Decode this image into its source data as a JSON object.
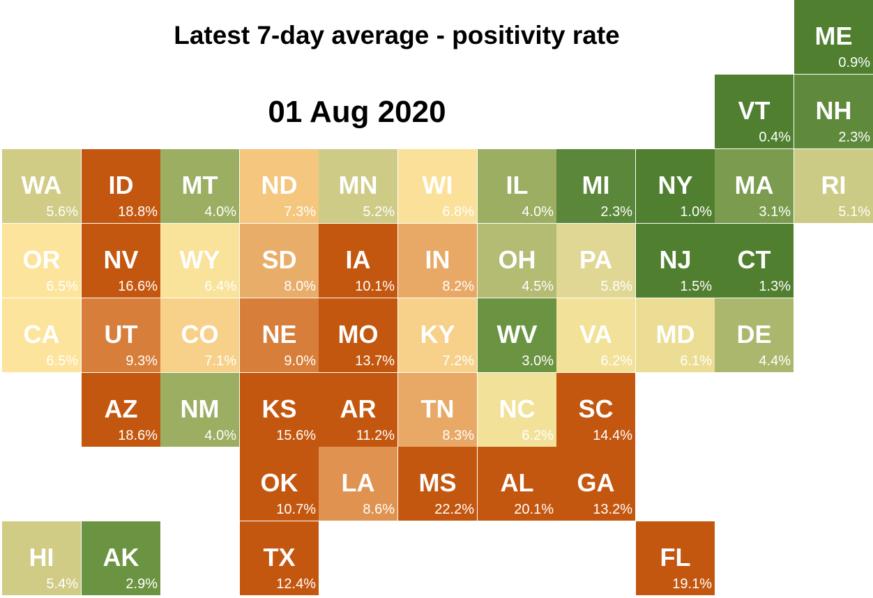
{
  "title": "Latest 7-day average - positivity rate",
  "date": "01 Aug 2020",
  "color_scale": {
    "lowest": "#4f7f2f",
    "low": "#8ea75a",
    "mid_low": "#cfcd8a",
    "mid": "#fbe29a",
    "mid_high": "#e89a52",
    "high": "#c4570f"
  },
  "states": [
    {
      "abbr": "ME",
      "value": "0.9%",
      "col": 10,
      "row": 0,
      "color": "#4f7f2f"
    },
    {
      "abbr": "VT",
      "value": "0.4%",
      "col": 9,
      "row": 1,
      "color": "#4f7f2f"
    },
    {
      "abbr": "NH",
      "value": "2.3%",
      "col": 10,
      "row": 1,
      "color": "#5f8a3c"
    },
    {
      "abbr": "WA",
      "value": "5.6%",
      "col": 0,
      "row": 2,
      "color": "#d0cb85"
    },
    {
      "abbr": "ID",
      "value": "18.8%",
      "col": 1,
      "row": 2,
      "color": "#c4570f"
    },
    {
      "abbr": "MT",
      "value": "4.0%",
      "col": 2,
      "row": 2,
      "color": "#9bae62"
    },
    {
      "abbr": "ND",
      "value": "7.3%",
      "col": 3,
      "row": 2,
      "color": "#f4c67e"
    },
    {
      "abbr": "MN",
      "value": "5.2%",
      "col": 4,
      "row": 2,
      "color": "#cdcb86"
    },
    {
      "abbr": "WI",
      "value": "6.8%",
      "col": 5,
      "row": 2,
      "color": "#fbe09a"
    },
    {
      "abbr": "IL",
      "value": "4.0%",
      "col": 6,
      "row": 2,
      "color": "#9bae62"
    },
    {
      "abbr": "MI",
      "value": "2.3%",
      "col": 7,
      "row": 2,
      "color": "#5a873a"
    },
    {
      "abbr": "NY",
      "value": "1.0%",
      "col": 8,
      "row": 2,
      "color": "#4f7f2f"
    },
    {
      "abbr": "MA",
      "value": "3.1%",
      "col": 9,
      "row": 2,
      "color": "#7b9c4e"
    },
    {
      "abbr": "RI",
      "value": "5.1%",
      "col": 10,
      "row": 2,
      "color": "#cccb85"
    },
    {
      "abbr": "OR",
      "value": "6.5%",
      "col": 0,
      "row": 3,
      "color": "#fde49c"
    },
    {
      "abbr": "NV",
      "value": "16.6%",
      "col": 1,
      "row": 3,
      "color": "#c4570f"
    },
    {
      "abbr": "WY",
      "value": "6.4%",
      "col": 2,
      "row": 3,
      "color": "#f9e29a"
    },
    {
      "abbr": "SD",
      "value": "8.0%",
      "col": 3,
      "row": 3,
      "color": "#e9ad6a"
    },
    {
      "abbr": "IA",
      "value": "10.1%",
      "col": 4,
      "row": 3,
      "color": "#c4570f"
    },
    {
      "abbr": "IN",
      "value": "8.2%",
      "col": 5,
      "row": 3,
      "color": "#e8a866"
    },
    {
      "abbr": "OH",
      "value": "4.5%",
      "col": 6,
      "row": 3,
      "color": "#b4bb72"
    },
    {
      "abbr": "PA",
      "value": "5.8%",
      "col": 7,
      "row": 3,
      "color": "#e0d794"
    },
    {
      "abbr": "NJ",
      "value": "1.5%",
      "col": 8,
      "row": 3,
      "color": "#4f7f2f"
    },
    {
      "abbr": "CT",
      "value": "1.3%",
      "col": 9,
      "row": 3,
      "color": "#4f7f2f"
    },
    {
      "abbr": "CA",
      "value": "6.5%",
      "col": 0,
      "row": 4,
      "color": "#fde49c"
    },
    {
      "abbr": "UT",
      "value": "9.3%",
      "col": 1,
      "row": 4,
      "color": "#d77e3a"
    },
    {
      "abbr": "CO",
      "value": "7.1%",
      "col": 2,
      "row": 4,
      "color": "#f7d18a"
    },
    {
      "abbr": "NE",
      "value": "9.0%",
      "col": 3,
      "row": 4,
      "color": "#d77e3a"
    },
    {
      "abbr": "MO",
      "value": "13.7%",
      "col": 4,
      "row": 4,
      "color": "#c4570f"
    },
    {
      "abbr": "KY",
      "value": "7.2%",
      "col": 5,
      "row": 4,
      "color": "#f7d18a"
    },
    {
      "abbr": "WV",
      "value": "3.0%",
      "col": 6,
      "row": 4,
      "color": "#6b9442"
    },
    {
      "abbr": "VA",
      "value": "6.2%",
      "col": 7,
      "row": 4,
      "color": "#f2e198"
    },
    {
      "abbr": "MD",
      "value": "6.1%",
      "col": 8,
      "row": 4,
      "color": "#ecdd94"
    },
    {
      "abbr": "DE",
      "value": "4.4%",
      "col": 9,
      "row": 4,
      "color": "#aab76c"
    },
    {
      "abbr": "AZ",
      "value": "18.6%",
      "col": 1,
      "row": 5,
      "color": "#c4570f"
    },
    {
      "abbr": "NM",
      "value": "4.0%",
      "col": 2,
      "row": 5,
      "color": "#9bae62"
    },
    {
      "abbr": "KS",
      "value": "15.6%",
      "col": 3,
      "row": 5,
      "color": "#c4570f"
    },
    {
      "abbr": "AR",
      "value": "11.2%",
      "col": 4,
      "row": 5,
      "color": "#c4570f"
    },
    {
      "abbr": "TN",
      "value": "8.3%",
      "col": 5,
      "row": 5,
      "color": "#e8a866"
    },
    {
      "abbr": "NC",
      "value": "6.2%",
      "col": 6,
      "row": 5,
      "color": "#f2e198"
    },
    {
      "abbr": "SC",
      "value": "14.4%",
      "col": 7,
      "row": 5,
      "color": "#c4570f"
    },
    {
      "abbr": "OK",
      "value": "10.7%",
      "col": 3,
      "row": 6,
      "color": "#c4570f"
    },
    {
      "abbr": "LA",
      "value": "8.6%",
      "col": 4,
      "row": 6,
      "color": "#e09350"
    },
    {
      "abbr": "MS",
      "value": "22.2%",
      "col": 5,
      "row": 6,
      "color": "#c4570f"
    },
    {
      "abbr": "AL",
      "value": "20.1%",
      "col": 6,
      "row": 6,
      "color": "#c4570f"
    },
    {
      "abbr": "GA",
      "value": "13.2%",
      "col": 7,
      "row": 6,
      "color": "#c4570f"
    },
    {
      "abbr": "HI",
      "value": "5.4%",
      "col": 0,
      "row": 7,
      "color": "#d0cb85"
    },
    {
      "abbr": "AK",
      "value": "2.9%",
      "col": 1,
      "row": 7,
      "color": "#6b9442"
    },
    {
      "abbr": "TX",
      "value": "12.4%",
      "col": 3,
      "row": 7,
      "color": "#c4570f"
    },
    {
      "abbr": "FL",
      "value": "19.1%",
      "col": 8,
      "row": 7,
      "color": "#c4570f"
    }
  ]
}
